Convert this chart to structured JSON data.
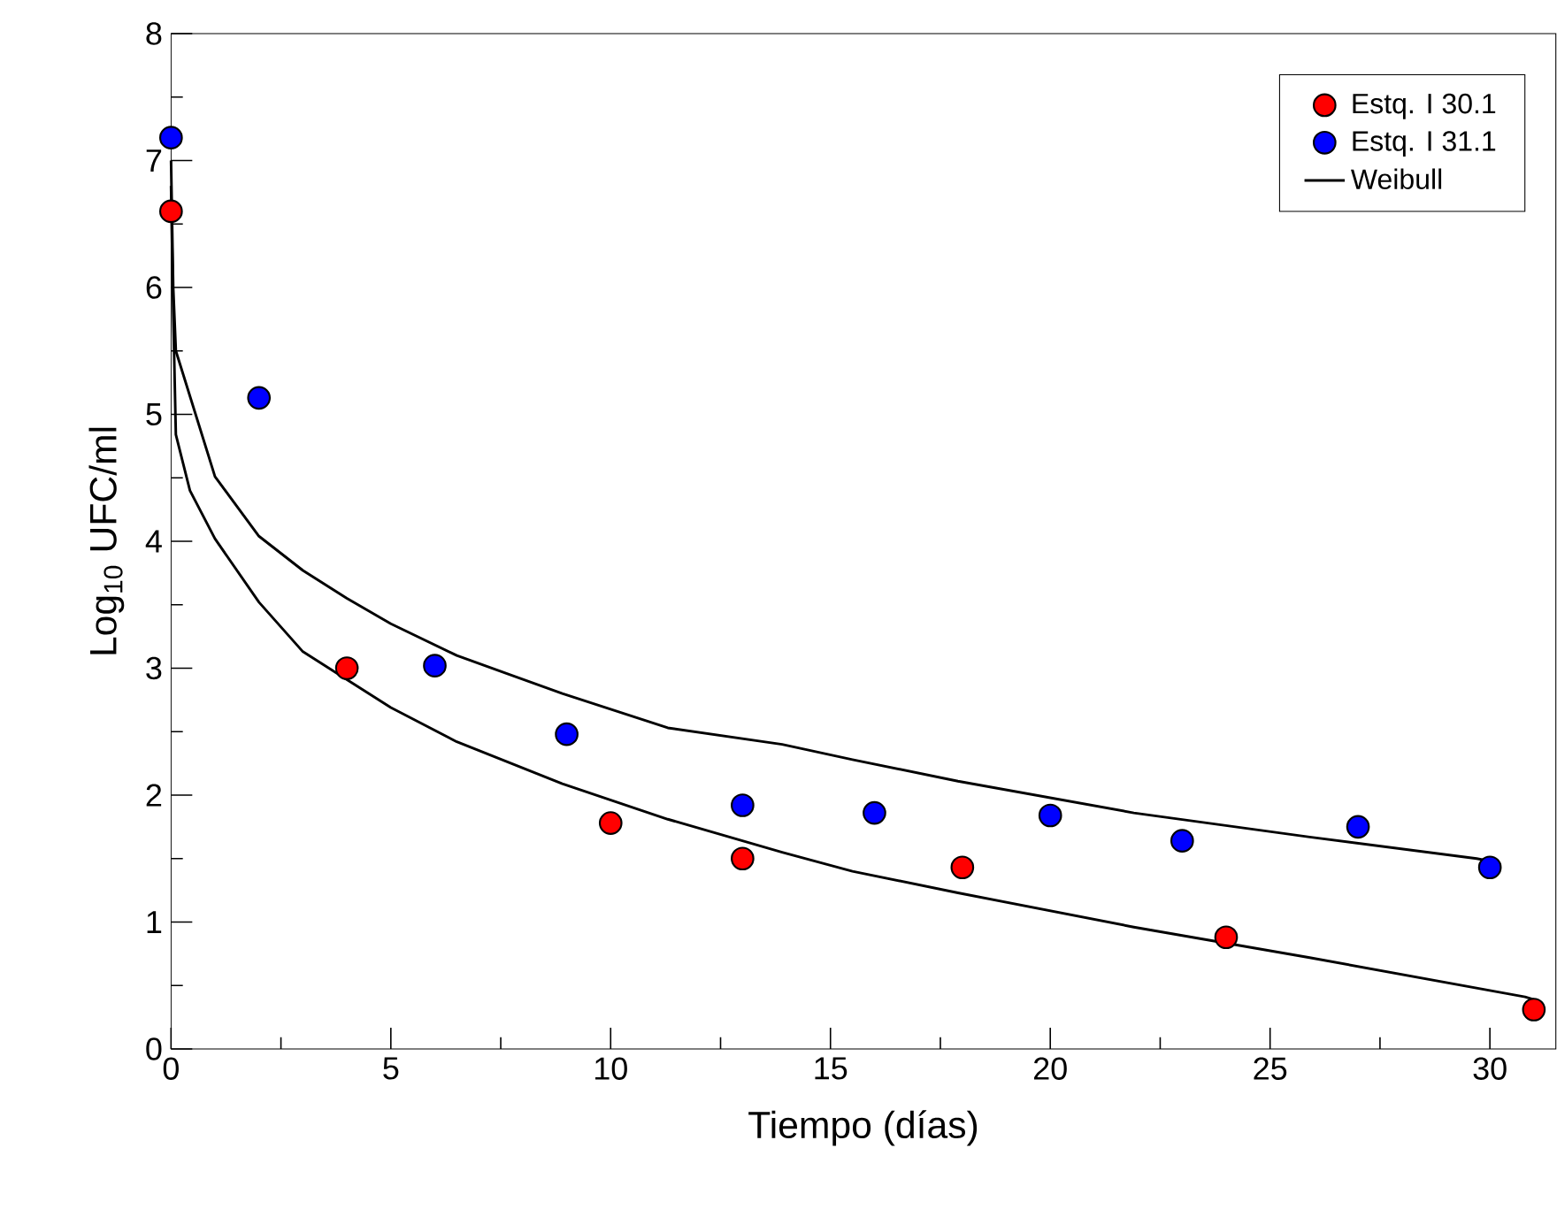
{
  "chart_data": {
    "type": "scatter",
    "xlabel": "Tiempo (días)",
    "ylabel": "Log$_{10}$ UFC/ml",
    "xlim": [
      0,
      31.5
    ],
    "ylim": [
      0,
      8
    ],
    "xticks": [
      0,
      5,
      10,
      15,
      20,
      25,
      30
    ],
    "yticks": [
      0,
      1,
      2,
      3,
      4,
      5,
      6,
      7,
      8
    ],
    "legend": "top right",
    "grid": false,
    "series": [
      {
        "name": "Estq. I 30.1",
        "marker": "circle",
        "color": "#ff0000",
        "x": [
          0,
          4,
          10,
          13,
          18,
          24,
          31
        ],
        "values": [
          6.6,
          3.0,
          1.78,
          1.5,
          1.43,
          0.88,
          0.31
        ]
      },
      {
        "name": "Estq. I 31.1",
        "marker": "circle",
        "color": "#0000ff",
        "x": [
          0,
          2,
          6,
          9,
          13,
          16,
          20,
          23,
          27,
          30
        ],
        "values": [
          7.18,
          5.13,
          3.02,
          2.48,
          1.92,
          1.86,
          1.84,
          1.64,
          1.75,
          1.43
        ]
      },
      {
        "name": "Weibull",
        "type": "line",
        "marker": "none",
        "line_style": "solid",
        "color": "#000000",
        "x": [
          0,
          0.05,
          0.11,
          1,
          2,
          3,
          4,
          5,
          6.5,
          8.9,
          11.3,
          13.9,
          15.5,
          17.9,
          21.9,
          25.9,
          29.7,
          30
        ],
        "values": [
          7.0,
          6.0,
          5.5,
          4.51,
          4.04,
          3.77,
          3.55,
          3.35,
          3.1,
          2.8,
          2.53,
          2.4,
          2.28,
          2.11,
          1.86,
          1.67,
          1.5,
          1.48
        ]
      },
      {
        "type": "line",
        "marker": "none",
        "line_style": "solid",
        "color": "#000000",
        "x": [
          0,
          0.05,
          0.11,
          0.43,
          1,
          2,
          3,
          4,
          5,
          6.5,
          8.9,
          11.3,
          13.9,
          15.5,
          17.9,
          21.9,
          25.9,
          30.8,
          31
        ],
        "values": [
          6.8,
          5.8,
          4.84,
          4.4,
          4.02,
          3.52,
          3.13,
          2.91,
          2.69,
          2.42,
          2.09,
          1.81,
          1.55,
          1.4,
          1.23,
          0.96,
          0.72,
          0.41,
          0.39
        ]
      }
    ]
  }
}
